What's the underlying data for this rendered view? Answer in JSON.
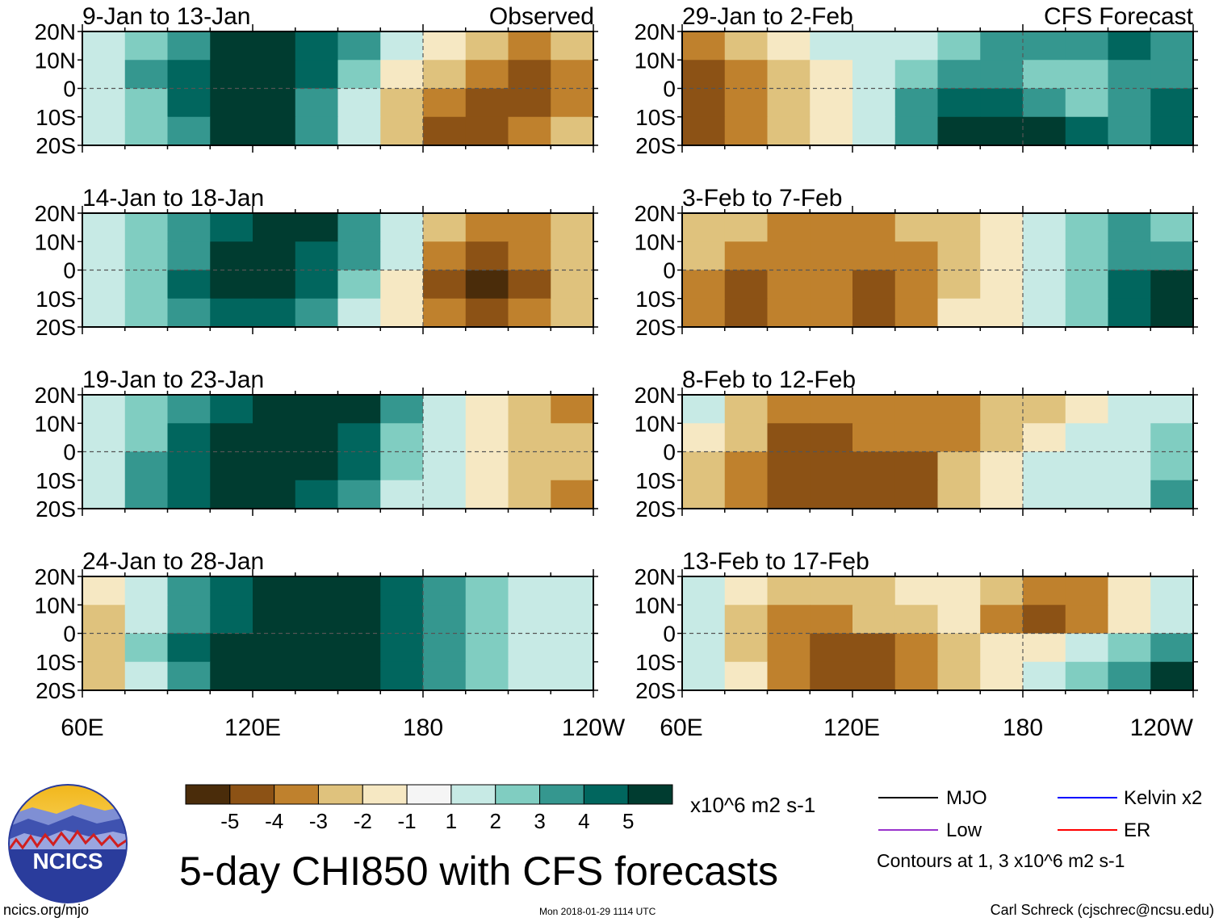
{
  "chart_data": {
    "type": "heatmap",
    "title": "5-day CHI850 with CFS forecasts",
    "variable": "CHI850 (850 hPa velocity potential) anomaly",
    "units": "x10^6 m2 s-1",
    "x_ticks": [
      "60E",
      "120E",
      "180",
      "120W"
    ],
    "y_ticks": [
      "20N",
      "10N",
      "0",
      "10S",
      "20S"
    ],
    "colorbar": {
      "ticks": [
        "-5",
        "-4",
        "-3",
        "-2",
        "-1",
        "1",
        "2",
        "3",
        "4",
        "5"
      ],
      "colors": [
        "#4a2c0a",
        "#8c5215",
        "#bf812d",
        "#dfc27d",
        "#f6e8c3",
        "#f5f5f5",
        "#c7eae5",
        "#80cdc1",
        "#35978f",
        "#01665e",
        "#003c30"
      ]
    },
    "column_labels": {
      "left": "Observed",
      "right": "CFS Forecast"
    },
    "panels_left": [
      {
        "period": "9-Jan to 13-Jan",
        "pattern": [
          [
            1,
            2,
            3,
            5,
            5,
            4,
            3,
            1,
            -1,
            -2,
            -3,
            -2
          ],
          [
            1,
            3,
            4,
            5,
            5,
            4,
            2,
            -1,
            -2,
            -3,
            -4,
            -3
          ],
          [
            1,
            2,
            4,
            5,
            5,
            3,
            1,
            -2,
            -3,
            -4,
            -4,
            -3
          ],
          [
            1,
            2,
            3,
            5,
            5,
            3,
            1,
            -2,
            -4,
            -4,
            -3,
            -2
          ]
        ]
      },
      {
        "period": "14-Jan to 18-Jan",
        "pattern": [
          [
            1,
            2,
            3,
            4,
            5,
            5,
            3,
            1,
            -2,
            -3,
            -3,
            -2
          ],
          [
            1,
            2,
            3,
            5,
            5,
            4,
            3,
            1,
            -3,
            -4,
            -3,
            -2
          ],
          [
            1,
            2,
            4,
            5,
            5,
            4,
            2,
            -1,
            -4,
            -5,
            -4,
            -2
          ],
          [
            1,
            2,
            3,
            4,
            4,
            3,
            1,
            -1,
            -3,
            -4,
            -3,
            -2
          ]
        ]
      },
      {
        "period": "19-Jan to 23-Jan",
        "pattern": [
          [
            1,
            2,
            3,
            4,
            5,
            5,
            5,
            3,
            1,
            -1,
            -2,
            -3
          ],
          [
            1,
            2,
            4,
            5,
            5,
            5,
            4,
            2,
            1,
            -1,
            -2,
            -2
          ],
          [
            1,
            3,
            4,
            5,
            5,
            5,
            4,
            2,
            1,
            -1,
            -2,
            -2
          ],
          [
            1,
            3,
            4,
            5,
            5,
            4,
            3,
            1,
            1,
            -1,
            -2,
            -3
          ]
        ]
      },
      {
        "period": "24-Jan to 28-Jan",
        "pattern": [
          [
            -1,
            1,
            3,
            4,
            5,
            5,
            5,
            4,
            3,
            2,
            1,
            1
          ],
          [
            -2,
            1,
            3,
            4,
            5,
            5,
            5,
            4,
            3,
            2,
            1,
            1
          ],
          [
            -2,
            2,
            4,
            5,
            5,
            5,
            5,
            4,
            3,
            2,
            1,
            1
          ],
          [
            -2,
            1,
            3,
            5,
            5,
            5,
            5,
            4,
            3,
            2,
            1,
            1
          ]
        ]
      }
    ],
    "panels_right": [
      {
        "period": "29-Jan to 2-Feb",
        "pattern": [
          [
            -3,
            -2,
            -1,
            1,
            1,
            1,
            2,
            3,
            3,
            3,
            4,
            3
          ],
          [
            -4,
            -3,
            -2,
            -1,
            1,
            2,
            3,
            3,
            2,
            2,
            3,
            3
          ],
          [
            -4,
            -3,
            -2,
            -1,
            1,
            3,
            4,
            4,
            3,
            2,
            3,
            4
          ],
          [
            -4,
            -3,
            -2,
            -1,
            1,
            3,
            5,
            5,
            5,
            4,
            3,
            4
          ]
        ]
      },
      {
        "period": "3-Feb to 7-Feb",
        "pattern": [
          [
            -2,
            -2,
            -3,
            -3,
            -3,
            -2,
            -2,
            -1,
            1,
            2,
            3,
            2
          ],
          [
            -2,
            -3,
            -3,
            -3,
            -3,
            -3,
            -2,
            -1,
            1,
            2,
            3,
            3
          ],
          [
            -3,
            -4,
            -3,
            -3,
            -4,
            -3,
            -2,
            -1,
            1,
            2,
            4,
            5
          ],
          [
            -3,
            -4,
            -3,
            -3,
            -4,
            -3,
            -1,
            -1,
            1,
            2,
            4,
            5
          ]
        ]
      },
      {
        "period": "8-Feb to 12-Feb",
        "pattern": [
          [
            1,
            -2,
            -3,
            -3,
            -3,
            -3,
            -3,
            -2,
            -2,
            -1,
            1,
            1
          ],
          [
            -1,
            -2,
            -4,
            -4,
            -3,
            -3,
            -3,
            -2,
            -1,
            1,
            1,
            2
          ],
          [
            -2,
            -3,
            -4,
            -4,
            -4,
            -4,
            -2,
            -1,
            1,
            1,
            1,
            2
          ],
          [
            -2,
            -3,
            -4,
            -4,
            -4,
            -4,
            -2,
            -1,
            1,
            1,
            1,
            3
          ]
        ]
      },
      {
        "period": "13-Feb to 17-Feb",
        "pattern": [
          [
            1,
            -1,
            -2,
            -2,
            -2,
            -1,
            -1,
            -2,
            -3,
            -3,
            -1,
            1
          ],
          [
            1,
            -2,
            -3,
            -3,
            -2,
            -2,
            -1,
            -3,
            -4,
            -3,
            -1,
            1
          ],
          [
            1,
            -2,
            -3,
            -4,
            -4,
            -3,
            -2,
            -1,
            -1,
            1,
            2,
            3
          ],
          [
            1,
            -1,
            -3,
            -4,
            -4,
            -3,
            -2,
            -1,
            1,
            2,
            3,
            5
          ]
        ]
      }
    ],
    "legend": {
      "lines": [
        {
          "label": "MJO",
          "color": "#000000"
        },
        {
          "label": "Kelvin x2",
          "color": "#0000ff"
        },
        {
          "label": "Low",
          "color": "#9933cc"
        },
        {
          "label": "ER",
          "color": "#ff0000"
        }
      ],
      "contours_note": "Contours at 1, 3 x10^6 m2 s-1"
    }
  },
  "footer": {
    "logo_text": "NCICS",
    "url": "ncics.org/mjo",
    "timestamp": "Mon 2018-01-29 1114 UTC",
    "author": "Carl Schreck (cjschrec@ncsu.edu)"
  }
}
